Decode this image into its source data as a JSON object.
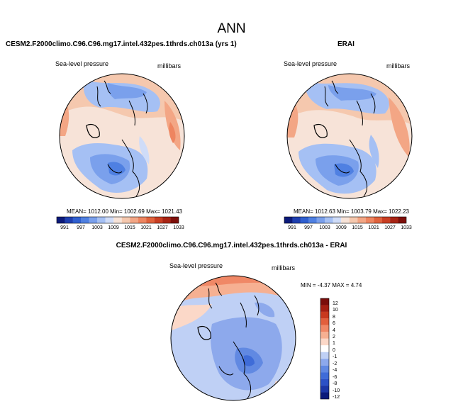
{
  "chart_data": {
    "type": "heatmap",
    "title": "ANN",
    "panels": [
      {
        "id": "model",
        "title": "CESM2.F2000climo.C96.C96.mg17.intel.432pes.1thrds.ch013a (yrs 1)",
        "variable": "Sea-level pressure",
        "units": "millibars",
        "stats_text": "MEAN= 1012.00  Min= 1002.69  Max= 1021.43",
        "mean": 1012.0,
        "min": 1002.69,
        "max": 1021.43,
        "colorbar": {
          "orientation": "horizontal",
          "tick_labels": [
            "991",
            "997",
            "1003",
            "1009",
            "1015",
            "1021",
            "1027",
            "1033"
          ],
          "levels": [
            991,
            994,
            997,
            1000,
            1003,
            1006,
            1009,
            1012,
            1015,
            1018,
            1021,
            1024,
            1027,
            1030,
            1033
          ]
        }
      },
      {
        "id": "obs",
        "title": "ERAI",
        "variable": "Sea-level pressure",
        "units": "millibars",
        "stats_text": "MEAN= 1012.63  Min= 1003.79  Max= 1022.23",
        "mean": 1012.63,
        "min": 1003.79,
        "max": 1022.23,
        "colorbar": {
          "orientation": "horizontal",
          "tick_labels": [
            "991",
            "997",
            "1003",
            "1009",
            "1015",
            "1021",
            "1027",
            "1033"
          ],
          "levels": [
            991,
            994,
            997,
            1000,
            1003,
            1006,
            1009,
            1012,
            1015,
            1018,
            1021,
            1024,
            1027,
            1030,
            1033
          ]
        }
      },
      {
        "id": "diff",
        "title": "CESM2.F2000climo.C96.C96.mg17.intel.432pes.1thrds.ch013a - ERAI",
        "variable": "Sea-level pressure",
        "units": "millibars",
        "stats_text": "MIN =  -4.37 MAX =   4.74",
        "min": -4.37,
        "max": 4.74,
        "colorbar": {
          "orientation": "vertical",
          "tick_labels": [
            "12",
            "10",
            "8",
            "6",
            "4",
            "2",
            "1",
            "0",
            "-1",
            "-2",
            "-4",
            "-6",
            "-8",
            "-10",
            "-12"
          ]
        }
      }
    ],
    "colors": {
      "abs_scale": [
        "#0b1a7a",
        "#1e3fb0",
        "#2f5fd0",
        "#4f80e2",
        "#7aa0ec",
        "#a5c0f4",
        "#cfdcf8",
        "#f7e3d8",
        "#f5c8ae",
        "#f3a685",
        "#ee8560",
        "#e0623c",
        "#c93e22",
        "#a82414",
        "#7d0f0a"
      ],
      "diff_scale": [
        "#0b1a7a",
        "#1c36a6",
        "#2c51c6",
        "#3f6cd8",
        "#6189e2",
        "#8da9ec",
        "#bfd0f5",
        "#ffffff",
        "#fbd8c8",
        "#f6b092",
        "#f08866",
        "#e25f3c",
        "#c8391f",
        "#a51e12",
        "#7a0c0a"
      ]
    }
  }
}
